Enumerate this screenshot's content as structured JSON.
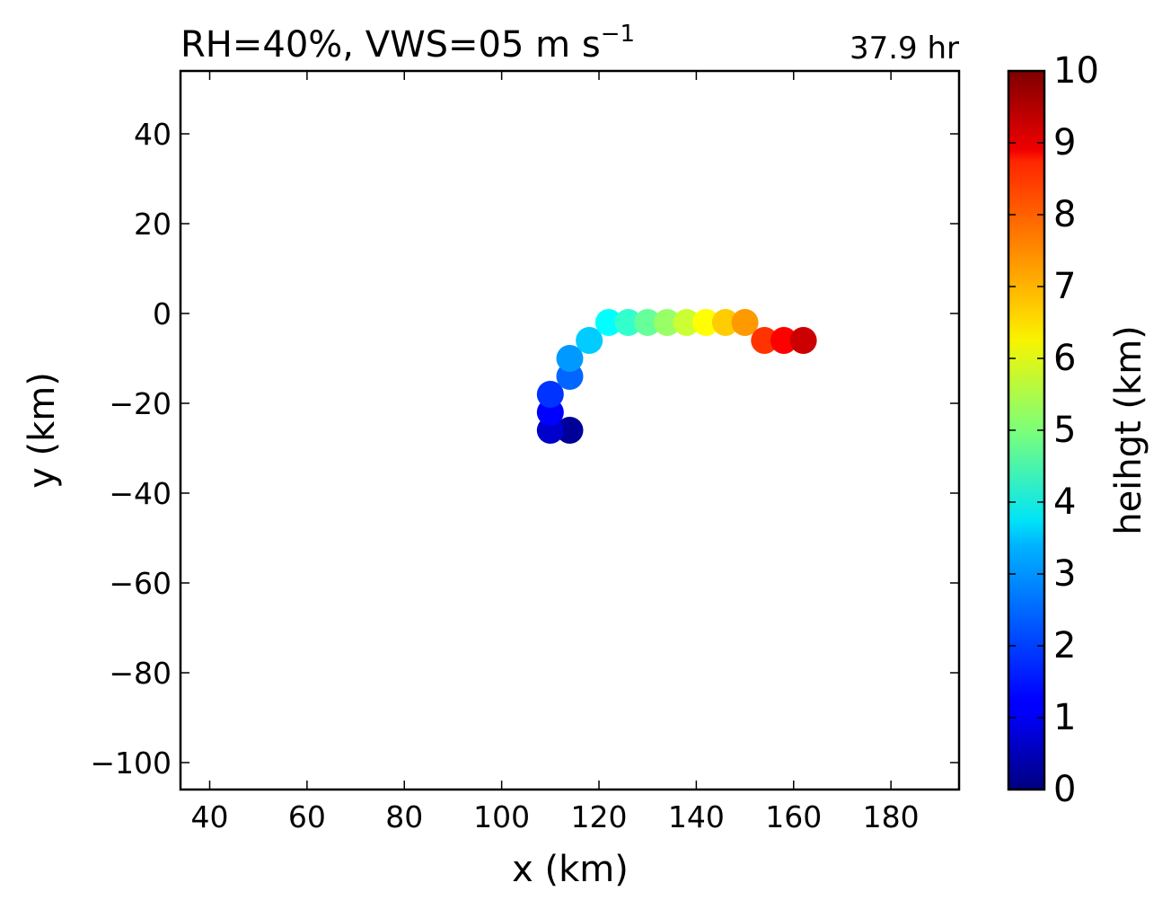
{
  "chart_data": {
    "type": "scatter",
    "title": "RH=40%, VWS=05 m s",
    "title_exponent": "−1",
    "time_label": "37.9 hr",
    "time_label_color": "#0000ff",
    "xlabel": "x (km)",
    "ylabel": "y (km)",
    "xlim": [
      34,
      194
    ],
    "ylim": [
      -106,
      54
    ],
    "xticks": [
      40,
      60,
      80,
      100,
      120,
      140,
      160,
      180
    ],
    "xtick_labels": [
      "40",
      "60",
      "80",
      "100",
      "120",
      "140",
      "160",
      "180"
    ],
    "yticks": [
      -100,
      -80,
      -60,
      -40,
      -20,
      0,
      20,
      40
    ],
    "ytick_labels": [
      "−100",
      "−80",
      "−60",
      "−40",
      "−20",
      "0",
      "20",
      "40"
    ],
    "grid": false,
    "colormap": "jet",
    "colorbar": {
      "label": "heihgt (km)",
      "range": [
        0,
        10
      ],
      "ticks": [
        0,
        1,
        2,
        3,
        4,
        5,
        6,
        7,
        8,
        9,
        10
      ],
      "tick_labels": [
        "0",
        "1",
        "2",
        "3",
        "4",
        "5",
        "6",
        "7",
        "8",
        "9",
        "10"
      ]
    },
    "points": [
      {
        "x": 114,
        "y": -26,
        "height": 0.25
      },
      {
        "x": 110,
        "y": -26,
        "height": 0.75
      },
      {
        "x": 110,
        "y": -22,
        "height": 1.25
      },
      {
        "x": 110,
        "y": -18,
        "height": 1.75
      },
      {
        "x": 114,
        "y": -14,
        "height": 2.25
      },
      {
        "x": 114,
        "y": -10,
        "height": 2.75
      },
      {
        "x": 118,
        "y": -6,
        "height": 3.25
      },
      {
        "x": 122,
        "y": -2,
        "height": 3.75
      },
      {
        "x": 126,
        "y": -2,
        "height": 4.25
      },
      {
        "x": 130,
        "y": -2,
        "height": 4.75
      },
      {
        "x": 134,
        "y": -2,
        "height": 5.25
      },
      {
        "x": 138,
        "y": -2,
        "height": 5.75
      },
      {
        "x": 142,
        "y": -2,
        "height": 6.25
      },
      {
        "x": 146,
        "y": -2,
        "height": 6.75
      },
      {
        "x": 150,
        "y": -2,
        "height": 7.25
      },
      {
        "x": 154,
        "y": -6,
        "height": 8.25
      },
      {
        "x": 158,
        "y": -6,
        "height": 8.75
      },
      {
        "x": 162,
        "y": -6,
        "height": 9.25
      }
    ]
  }
}
